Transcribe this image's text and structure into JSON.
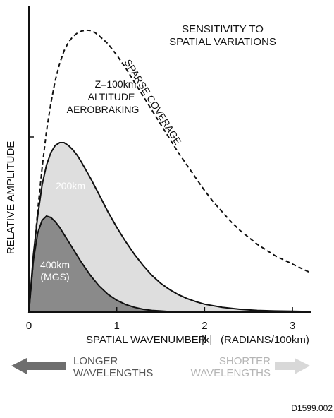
{
  "chart_data": {
    "type": "area",
    "title": "SENSITIVITY TO SPATIAL VARIATIONS",
    "xlabel": "SPATIAL WAVENUMBER |k| (RADIANS/100km)",
    "ylabel": "RELATIVE AMPLITUDE",
    "xlim": [
      0,
      3.2
    ],
    "ylim": [
      0,
      1.0
    ],
    "x_ticks": [
      "0",
      "1",
      "2",
      "3"
    ],
    "x_tick_values": [
      0,
      1,
      2,
      3
    ],
    "y_tick_values": [
      0,
      0.62
    ],
    "grid": false,
    "series": [
      {
        "name": "Z=100km ALTITUDE AEROBRAKING",
        "style": "dashed",
        "x": [
          0,
          0.05,
          0.1,
          0.15,
          0.2,
          0.25,
          0.3,
          0.35,
          0.4,
          0.45,
          0.5,
          0.55,
          0.6,
          0.65,
          0.7,
          0.75,
          0.8,
          0.9,
          1.0,
          1.1,
          1.2,
          1.3,
          1.4,
          1.5,
          1.6,
          1.7,
          1.8,
          1.9,
          2.0,
          2.1,
          2.2,
          2.3,
          2.4,
          2.5,
          2.6,
          2.7,
          2.8,
          2.9,
          3.0,
          3.1,
          3.2
        ],
        "y": [
          0,
          0.18,
          0.36,
          0.51,
          0.64,
          0.74,
          0.82,
          0.88,
          0.925,
          0.955,
          0.975,
          0.988,
          0.995,
          0.998,
          0.997,
          0.99,
          0.978,
          0.95,
          0.91,
          0.865,
          0.815,
          0.765,
          0.715,
          0.665,
          0.615,
          0.565,
          0.52,
          0.475,
          0.43,
          0.39,
          0.355,
          0.32,
          0.29,
          0.265,
          0.24,
          0.22,
          0.2,
          0.185,
          0.17,
          0.155,
          0.14
        ]
      },
      {
        "name": "200km",
        "x": [
          0,
          0.05,
          0.1,
          0.15,
          0.2,
          0.25,
          0.3,
          0.35,
          0.4,
          0.45,
          0.5,
          0.55,
          0.6,
          0.7,
          0.8,
          0.9,
          1.0,
          1.1,
          1.2,
          1.3,
          1.4,
          1.5,
          1.6,
          1.7,
          1.8,
          1.9,
          2.0,
          2.2,
          2.4,
          2.6,
          2.8,
          3.0,
          3.2
        ],
        "y": [
          0,
          0.2,
          0.34,
          0.45,
          0.52,
          0.565,
          0.59,
          0.6,
          0.6,
          0.59,
          0.575,
          0.555,
          0.53,
          0.475,
          0.415,
          0.355,
          0.3,
          0.25,
          0.205,
          0.165,
          0.13,
          0.102,
          0.08,
          0.062,
          0.048,
          0.037,
          0.028,
          0.017,
          0.01,
          0.006,
          0.004,
          0.003,
          0.002
        ]
      },
      {
        "name": "400km (MGS)",
        "x": [
          0,
          0.05,
          0.1,
          0.15,
          0.2,
          0.25,
          0.3,
          0.35,
          0.4,
          0.5,
          0.6,
          0.7,
          0.8,
          0.9,
          1.0,
          1.1,
          1.2,
          1.3,
          1.4,
          1.5,
          1.6,
          1.8,
          2.0
        ],
        "y": [
          0,
          0.18,
          0.28,
          0.325,
          0.34,
          0.335,
          0.32,
          0.3,
          0.275,
          0.225,
          0.175,
          0.13,
          0.092,
          0.063,
          0.042,
          0.027,
          0.017,
          0.01,
          0.006,
          0.004,
          0.002,
          0.001,
          0
        ]
      }
    ],
    "annotations": {
      "sparse": "SPARSE COVERAGE",
      "z_line1": "Z=100km",
      "z_line2": "ALTITUDE",
      "z_line3": "AEROBRAKING",
      "label_200": "200km",
      "label_400_line1": "400km",
      "label_400_line2": "(MGS)",
      "title_line1": "SENSITIVITY TO",
      "title_line2": "SPATIAL VARIATIONS"
    },
    "arrows": {
      "left_line1": "LONGER",
      "left_line2": "WAVELENGTHS",
      "right_line1": "SHORTER",
      "right_line2": "WAVELENGTHS"
    },
    "figure_id": "D1599.002",
    "colors": {
      "fill_200": "#dedede",
      "fill_400": "#8a8a8a",
      "arrow_left": "#6e6e6e",
      "arrow_right": "#d8d8d8",
      "text_right": "#b5b5b5"
    }
  }
}
